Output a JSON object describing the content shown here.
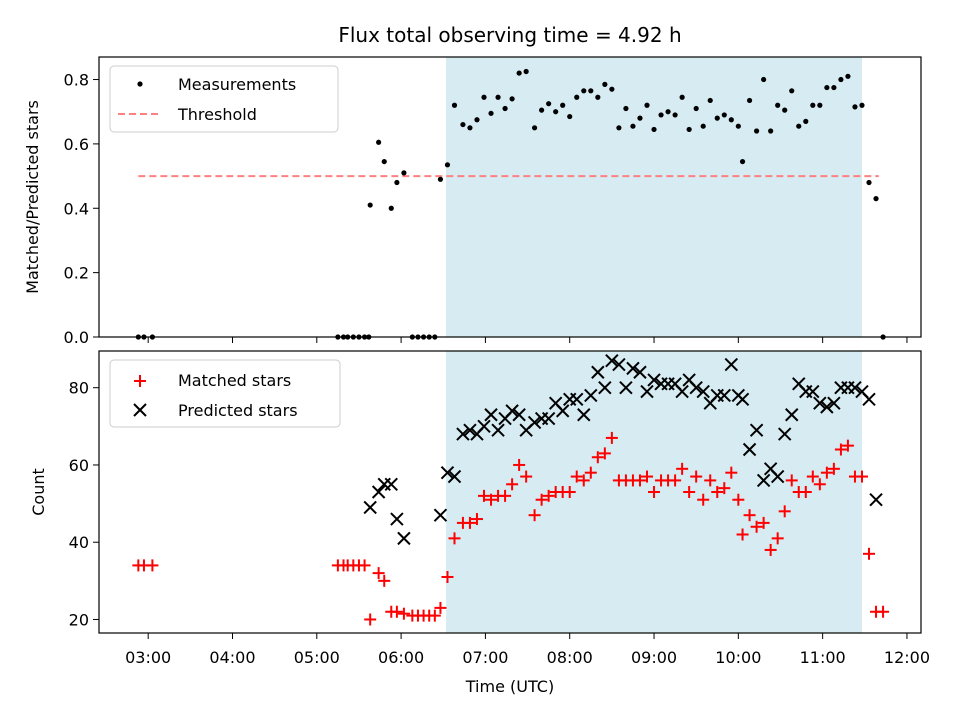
{
  "figure": {
    "title": "Flux total observing time = 4.92 h",
    "xlabel": "Time (UTC)"
  },
  "colors": {
    "shade": "#add8e6",
    "threshold": "#ff8080",
    "matched": "#ff0000",
    "predicted": "#000000",
    "measurements": "#000000"
  },
  "chart_data": [
    {
      "type": "scatter",
      "panel": "top",
      "ylabel": "Matched/Predicted stars",
      "xlim": [
        "02:25",
        "12:10"
      ],
      "ylim": [
        0,
        0.87
      ],
      "yticks": [
        "0.0",
        "0.2",
        "0.4",
        "0.6",
        "0.8"
      ],
      "legend_position": "upper-left",
      "shaded_interval": {
        "from": "06:32",
        "to": "11:28",
        "color": "lightblue"
      },
      "threshold": {
        "name": "Threshold",
        "value": 0.5,
        "x_from": "02:53",
        "x_to": "11:40",
        "style": "dashed"
      },
      "series": [
        {
          "name": "Measurements",
          "marker": "dot",
          "points": [
            [
              "02:53",
              0
            ],
            [
              "02:57",
              0
            ],
            [
              "03:03",
              0
            ],
            [
              "05:15",
              0
            ],
            [
              "05:19",
              0
            ],
            [
              "05:22",
              0
            ],
            [
              "05:26",
              0
            ],
            [
              "05:30",
              0
            ],
            [
              "05:34",
              0
            ],
            [
              "05:37",
              0
            ],
            [
              "05:38",
              0.41
            ],
            [
              "05:44",
              0.605
            ],
            [
              "05:48",
              0.545
            ],
            [
              "05:53",
              0.4
            ],
            [
              "05:57",
              0.48
            ],
            [
              "06:02",
              0.51
            ],
            [
              "06:08",
              0
            ],
            [
              "06:12",
              0
            ],
            [
              "06:16",
              0
            ],
            [
              "06:20",
              0
            ],
            [
              "06:24",
              0
            ],
            [
              "06:28",
              0.49
            ],
            [
              "06:33",
              0.535
            ],
            [
              "06:38",
              0.72
            ],
            [
              "06:44",
              0.66
            ],
            [
              "06:49",
              0.65
            ],
            [
              "06:54",
              0.675
            ],
            [
              "06:59",
              0.745
            ],
            [
              "07:04",
              0.695
            ],
            [
              "07:09",
              0.745
            ],
            [
              "07:14",
              0.71
            ],
            [
              "07:19",
              0.74
            ],
            [
              "07:24",
              0.82
            ],
            [
              "07:29",
              0.825
            ],
            [
              "07:35",
              0.65
            ],
            [
              "07:40",
              0.705
            ],
            [
              "07:45",
              0.725
            ],
            [
              "07:50",
              0.7
            ],
            [
              "07:55",
              0.72
            ],
            [
              "08:00",
              0.685
            ],
            [
              "08:05",
              0.745
            ],
            [
              "08:10",
              0.765
            ],
            [
              "08:15",
              0.765
            ],
            [
              "08:20",
              0.745
            ],
            [
              "08:25",
              0.785
            ],
            [
              "08:30",
              0.77
            ],
            [
              "08:35",
              0.65
            ],
            [
              "08:40",
              0.71
            ],
            [
              "08:45",
              0.655
            ],
            [
              "08:50",
              0.68
            ],
            [
              "08:55",
              0.72
            ],
            [
              "09:00",
              0.645
            ],
            [
              "09:05",
              0.69
            ],
            [
              "09:10",
              0.7
            ],
            [
              "09:15",
              0.69
            ],
            [
              "09:20",
              0.745
            ],
            [
              "09:25",
              0.645
            ],
            [
              "09:30",
              0.71
            ],
            [
              "09:35",
              0.655
            ],
            [
              "09:40",
              0.735
            ],
            [
              "09:45",
              0.68
            ],
            [
              "09:50",
              0.69
            ],
            [
              "09:55",
              0.675
            ],
            [
              "10:00",
              0.655
            ],
            [
              "10:03",
              0.545
            ],
            [
              "10:08",
              0.735
            ],
            [
              "10:13",
              0.64
            ],
            [
              "10:18",
              0.8
            ],
            [
              "10:23",
              0.64
            ],
            [
              "10:28",
              0.72
            ],
            [
              "10:33",
              0.705
            ],
            [
              "10:38",
              0.765
            ],
            [
              "10:43",
              0.655
            ],
            [
              "10:48",
              0.67
            ],
            [
              "10:53",
              0.72
            ],
            [
              "10:58",
              0.72
            ],
            [
              "11:03",
              0.775
            ],
            [
              "11:08",
              0.775
            ],
            [
              "11:13",
              0.8
            ],
            [
              "11:18",
              0.81
            ],
            [
              "11:23",
              0.715
            ],
            [
              "11:28",
              0.72
            ],
            [
              "11:33",
              0.48
            ],
            [
              "11:38",
              0.43
            ],
            [
              "11:43",
              0
            ]
          ]
        }
      ]
    },
    {
      "type": "scatter",
      "panel": "bottom",
      "xlabel": "Time (UTC)",
      "ylabel": "Count",
      "xlim": [
        "02:25",
        "12:10"
      ],
      "ylim": [
        16.5,
        89.5
      ],
      "yticks": [
        "20",
        "40",
        "60",
        "80"
      ],
      "xticks": [
        "03:00",
        "04:00",
        "05:00",
        "06:00",
        "07:00",
        "08:00",
        "09:00",
        "10:00",
        "11:00",
        "12:00"
      ],
      "legend_position": "upper-left",
      "shaded_interval": {
        "from": "06:32",
        "to": "11:28",
        "color": "lightblue"
      },
      "series": [
        {
          "name": "Matched stars",
          "marker": "plus",
          "points": [
            [
              "02:53",
              34
            ],
            [
              "02:57",
              34
            ],
            [
              "03:03",
              34
            ],
            [
              "05:15",
              34
            ],
            [
              "05:19",
              34
            ],
            [
              "05:22",
              34
            ],
            [
              "05:26",
              34
            ],
            [
              "05:30",
              34
            ],
            [
              "05:34",
              34
            ],
            [
              "05:38",
              20
            ],
            [
              "05:44",
              32
            ],
            [
              "05:48",
              30
            ],
            [
              "05:53",
              22
            ],
            [
              "05:57",
              22
            ],
            [
              "06:02",
              21.5
            ],
            [
              "06:08",
              21
            ],
            [
              "06:12",
              21
            ],
            [
              "06:16",
              21
            ],
            [
              "06:20",
              21
            ],
            [
              "06:24",
              21
            ],
            [
              "06:28",
              23
            ],
            [
              "06:33",
              31
            ],
            [
              "06:38",
              41
            ],
            [
              "06:44",
              45
            ],
            [
              "06:49",
              45
            ],
            [
              "06:54",
              46
            ],
            [
              "06:59",
              52
            ],
            [
              "07:04",
              51
            ],
            [
              "07:09",
              52
            ],
            [
              "07:14",
              52
            ],
            [
              "07:19",
              55
            ],
            [
              "07:24",
              60
            ],
            [
              "07:29",
              57
            ],
            [
              "07:35",
              47
            ],
            [
              "07:40",
              51
            ],
            [
              "07:45",
              52
            ],
            [
              "07:50",
              53
            ],
            [
              "07:55",
              53
            ],
            [
              "08:00",
              53
            ],
            [
              "08:05",
              57
            ],
            [
              "08:10",
              56
            ],
            [
              "08:15",
              58
            ],
            [
              "08:20",
              62
            ],
            [
              "08:25",
              63
            ],
            [
              "08:30",
              67
            ],
            [
              "08:35",
              56
            ],
            [
              "08:40",
              56
            ],
            [
              "08:45",
              56
            ],
            [
              "08:50",
              56
            ],
            [
              "08:55",
              57
            ],
            [
              "09:00",
              53
            ],
            [
              "09:05",
              56
            ],
            [
              "09:10",
              56
            ],
            [
              "09:15",
              56
            ],
            [
              "09:20",
              59
            ],
            [
              "09:25",
              53
            ],
            [
              "09:30",
              57
            ],
            [
              "09:35",
              51
            ],
            [
              "09:40",
              56
            ],
            [
              "09:45",
              53
            ],
            [
              "09:50",
              54
            ],
            [
              "09:55",
              58
            ],
            [
              "10:00",
              51
            ],
            [
              "10:03",
              42
            ],
            [
              "10:08",
              47
            ],
            [
              "10:13",
              44
            ],
            [
              "10:18",
              45
            ],
            [
              "10:23",
              38
            ],
            [
              "10:28",
              41
            ],
            [
              "10:33",
              48
            ],
            [
              "10:38",
              56
            ],
            [
              "10:43",
              53
            ],
            [
              "10:48",
              53
            ],
            [
              "10:53",
              57
            ],
            [
              "10:58",
              55
            ],
            [
              "11:03",
              58
            ],
            [
              "11:08",
              59
            ],
            [
              "11:13",
              64
            ],
            [
              "11:18",
              65
            ],
            [
              "11:23",
              57
            ],
            [
              "11:28",
              57
            ],
            [
              "11:33",
              37
            ],
            [
              "11:38",
              22
            ],
            [
              "11:43",
              22
            ]
          ]
        },
        {
          "name": "Predicted stars",
          "marker": "x",
          "points": [
            [
              "05:38",
              49
            ],
            [
              "05:44",
              53
            ],
            [
              "05:48",
              55
            ],
            [
              "05:53",
              55
            ],
            [
              "05:57",
              46
            ],
            [
              "06:02",
              41
            ],
            [
              "06:28",
              47
            ],
            [
              "06:33",
              58
            ],
            [
              "06:38",
              57
            ],
            [
              "06:44",
              68
            ],
            [
              "06:49",
              69
            ],
            [
              "06:54",
              68
            ],
            [
              "06:59",
              70
            ],
            [
              "07:04",
              73
            ],
            [
              "07:09",
              69
            ],
            [
              "07:14",
              72
            ],
            [
              "07:19",
              74
            ],
            [
              "07:24",
              73
            ],
            [
              "07:29",
              69
            ],
            [
              "07:35",
              71
            ],
            [
              "07:40",
              72
            ],
            [
              "07:45",
              72
            ],
            [
              "07:50",
              76
            ],
            [
              "07:55",
              74
            ],
            [
              "08:00",
              77
            ],
            [
              "08:05",
              77
            ],
            [
              "08:10",
              73
            ],
            [
              "08:15",
              78
            ],
            [
              "08:20",
              84
            ],
            [
              "08:25",
              80
            ],
            [
              "08:30",
              87
            ],
            [
              "08:35",
              86
            ],
            [
              "08:40",
              80
            ],
            [
              "08:45",
              85
            ],
            [
              "08:50",
              84
            ],
            [
              "08:55",
              79
            ],
            [
              "09:00",
              82
            ],
            [
              "09:05",
              81
            ],
            [
              "09:10",
              81
            ],
            [
              "09:15",
              81
            ],
            [
              "09:20",
              79
            ],
            [
              "09:25",
              82
            ],
            [
              "09:30",
              80
            ],
            [
              "09:35",
              79
            ],
            [
              "09:40",
              76
            ],
            [
              "09:45",
              78
            ],
            [
              "09:50",
              78
            ],
            [
              "09:55",
              86
            ],
            [
              "10:00",
              78
            ],
            [
              "10:03",
              77
            ],
            [
              "10:08",
              64
            ],
            [
              "10:13",
              69
            ],
            [
              "10:18",
              56
            ],
            [
              "10:23",
              59
            ],
            [
              "10:28",
              57
            ],
            [
              "10:33",
              68
            ],
            [
              "10:38",
              73
            ],
            [
              "10:43",
              81
            ],
            [
              "10:48",
              79
            ],
            [
              "10:53",
              79
            ],
            [
              "10:58",
              76
            ],
            [
              "11:03",
              75
            ],
            [
              "11:08",
              76
            ],
            [
              "11:13",
              80
            ],
            [
              "11:18",
              80
            ],
            [
              "11:23",
              80
            ],
            [
              "11:28",
              79
            ],
            [
              "11:33",
              77
            ],
            [
              "11:38",
              51
            ]
          ]
        }
      ]
    }
  ]
}
